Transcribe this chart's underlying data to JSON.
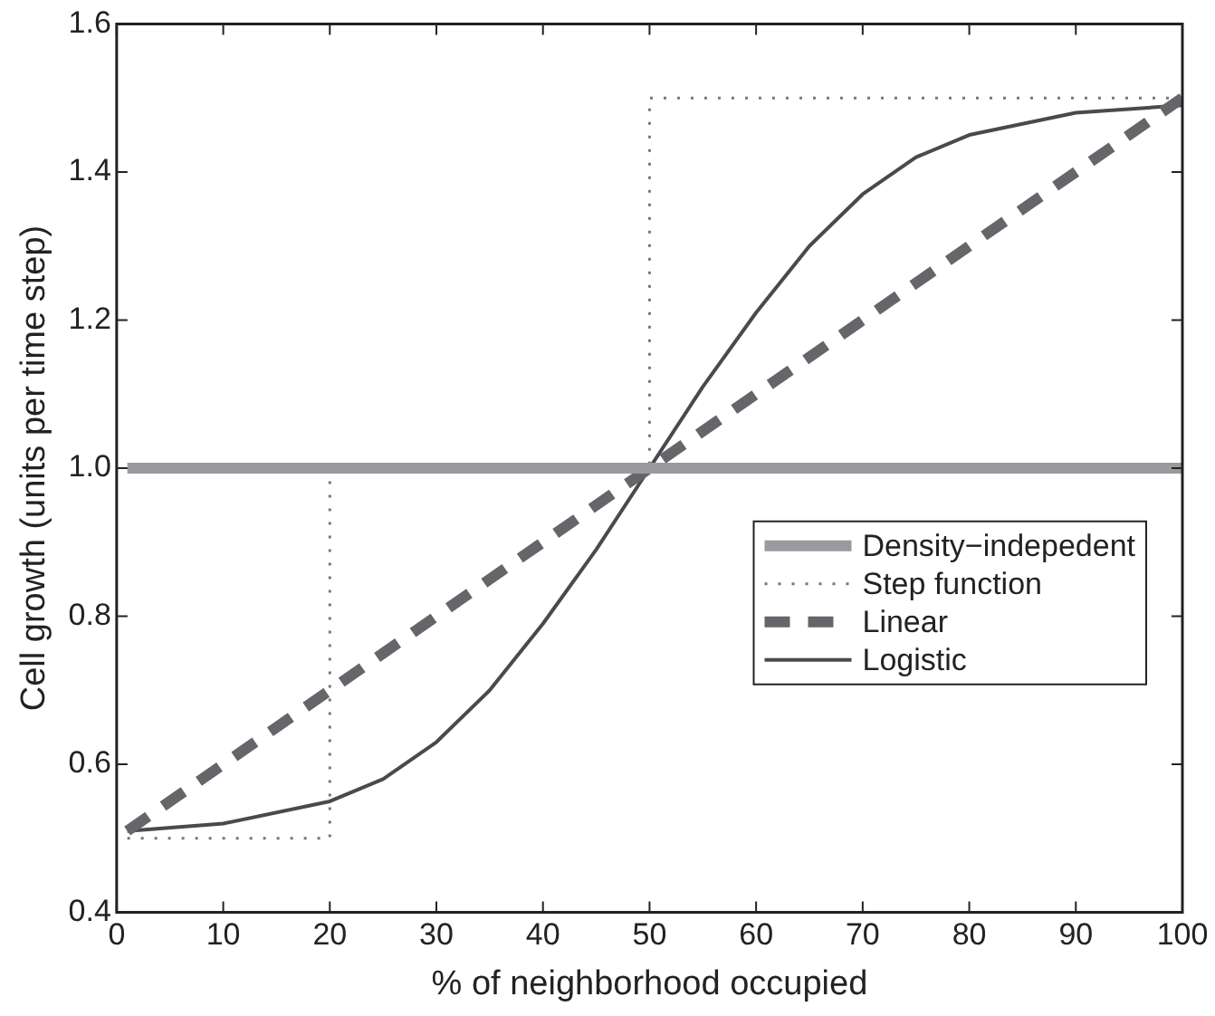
{
  "chart_data": {
    "type": "line",
    "xlabel": "% of neighborhood occupied",
    "ylabel": "Cell growth (units per time step)",
    "xlim": [
      0,
      100
    ],
    "xticks": [
      0,
      10,
      20,
      30,
      40,
      50,
      60,
      70,
      80,
      90,
      100
    ],
    "ylim": [
      0.4,
      1.6
    ],
    "yticks": [
      {
        "value": 0.4,
        "label": "0.4"
      },
      {
        "value": 0.6,
        "label": "0.6"
      },
      {
        "value": 0.8,
        "label": "0.8"
      },
      {
        "value": 1.0,
        "label": "1.0"
      },
      {
        "value": 1.2,
        "label": "1.2"
      },
      {
        "value": 1.4,
        "label": "1.4"
      },
      {
        "value": 1.6,
        "label": "1.6"
      }
    ],
    "grid": false,
    "legend": "bottom right",
    "marker": "none",
    "series": [
      {
        "name": "Density−indepedent",
        "color": "#9a9a9e",
        "line_style": "solid",
        "x": [
          1,
          100
        ],
        "values": [
          1.0,
          1.0
        ]
      },
      {
        "name": "Step function",
        "color": "#77777b",
        "line_style": "dotted",
        "x": [
          1,
          20,
          20,
          50,
          50,
          100
        ],
        "values": [
          0.5,
          0.5,
          1.0,
          1.0,
          1.5,
          1.5
        ]
      },
      {
        "name": "Linear",
        "color": "#66666a",
        "line_style": "dashed",
        "x": [
          1,
          100
        ],
        "values": [
          0.51,
          1.5
        ]
      },
      {
        "name": "Logistic",
        "color": "#4a4a4e",
        "line_style": "solid",
        "x": [
          1,
          10,
          20,
          25,
          30,
          35,
          40,
          45,
          50,
          55,
          60,
          65,
          70,
          75,
          80,
          90,
          100
        ],
        "values": [
          0.51,
          0.52,
          0.55,
          0.58,
          0.63,
          0.7,
          0.79,
          0.89,
          1.0,
          1.11,
          1.21,
          1.3,
          1.37,
          1.42,
          1.45,
          1.48,
          1.49
        ]
      }
    ]
  }
}
